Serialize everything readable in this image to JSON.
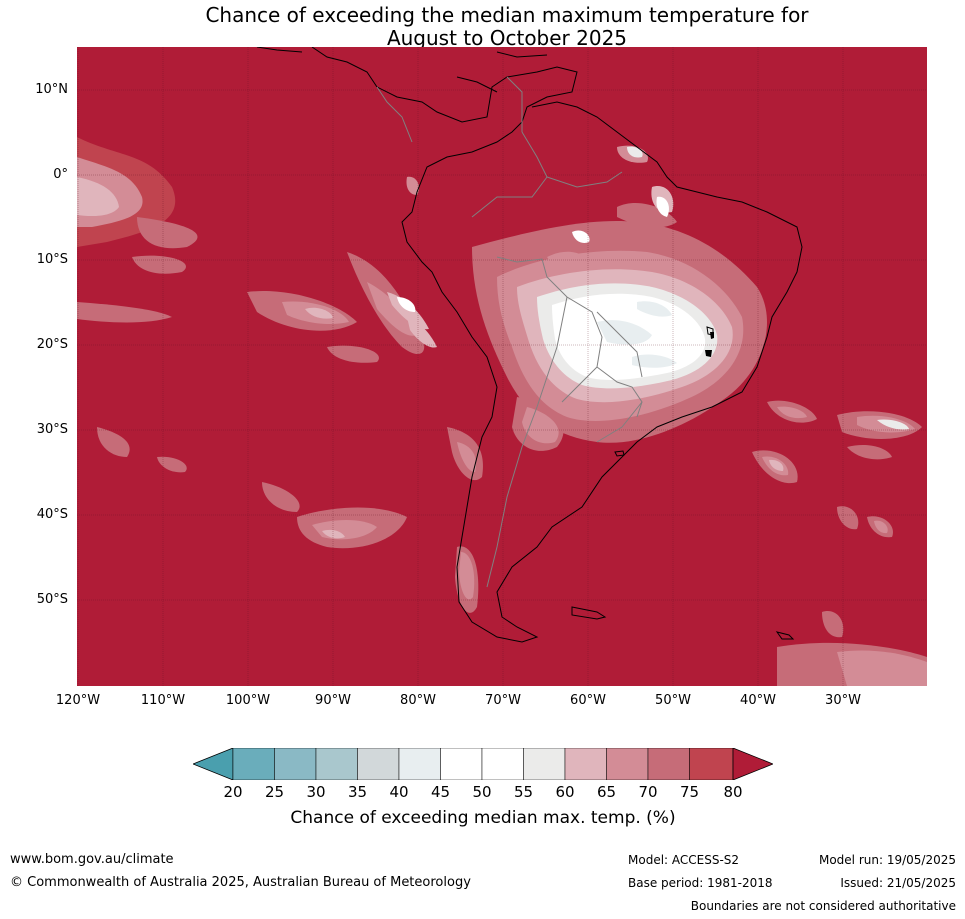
{
  "title": {
    "line1": "Chance of exceeding the median maximum temperature for",
    "line2": "August to October 2025"
  },
  "map": {
    "lat_labels": [
      "10°N",
      "0°",
      "10°S",
      "20°S",
      "30°S",
      "40°S",
      "50°S"
    ],
    "lon_labels": [
      "120°W",
      "110°W",
      "100°W",
      "90°W",
      "80°W",
      "70°W",
      "60°W",
      "50°W",
      "40°W",
      "30°W"
    ],
    "background_color": "#b01c37"
  },
  "colorbar": {
    "label": "Chance of exceeding median max. temp. (%)",
    "ticks": [
      "20",
      "25",
      "30",
      "35",
      "40",
      "45",
      "50",
      "55",
      "60",
      "65",
      "70",
      "75",
      "80"
    ],
    "colors": [
      "#4a9fae",
      "#6aadbb",
      "#8ab9c5",
      "#a9c7cd",
      "#d2d8da",
      "#e8eef0",
      "#ffffff",
      "#ffffff",
      "#ebebea",
      "#e0b5bc",
      "#d38c96",
      "#c66c78",
      "#c0444f",
      "#b01c37"
    ]
  },
  "footer": {
    "website": "www.bom.gov.au/climate",
    "copyright": "© Commonwealth of Australia 2025, Australian Bureau of Meteorology",
    "model": "Model: ACCESS-S2",
    "base_period": "Base period: 1981-2018",
    "model_run": "Model run: 19/05/2025",
    "issued": "Issued: 21/05/2025",
    "disclaimer": "Boundaries are not considered authoritative"
  }
}
